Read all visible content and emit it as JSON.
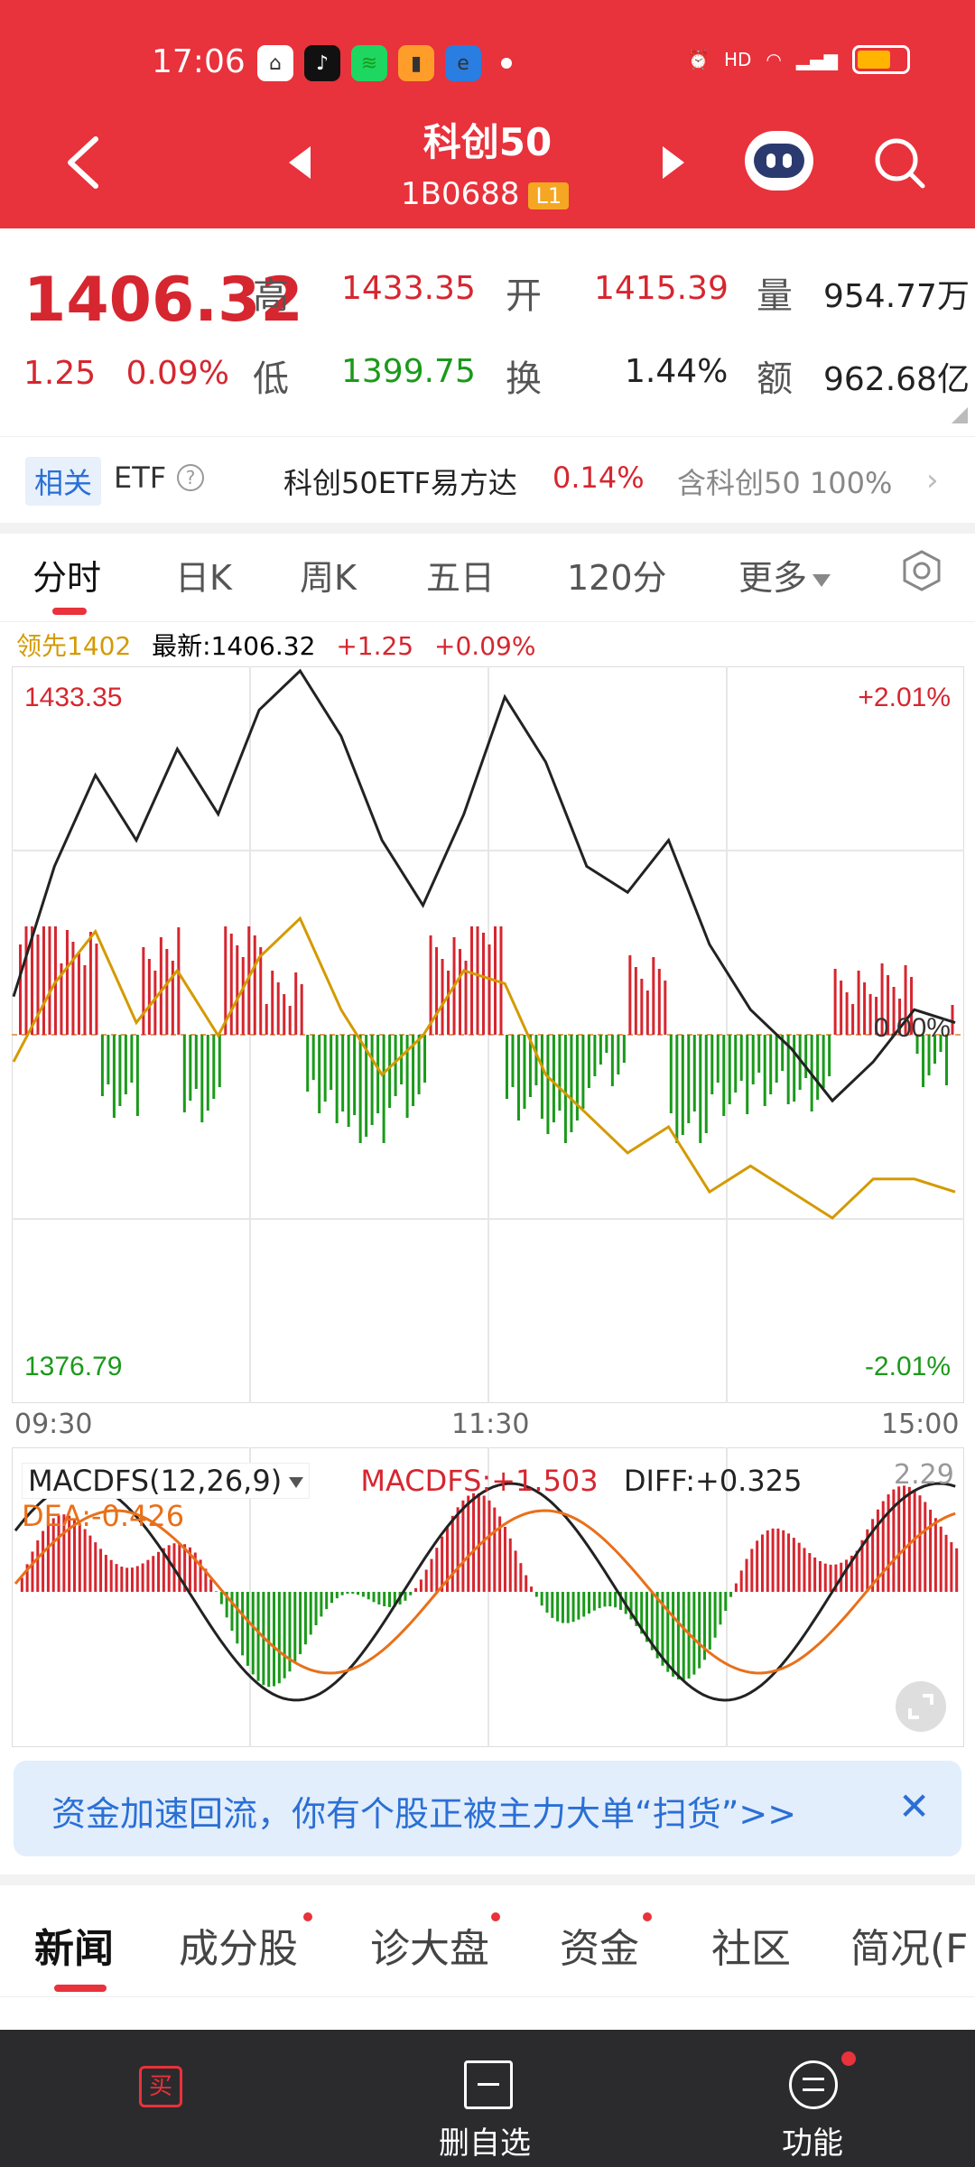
{
  "status_bar": {
    "time": "17:06"
  },
  "header": {
    "title": "科创50",
    "code": "1B0688",
    "level_badge": "L1"
  },
  "quote": {
    "price": "1406.32",
    "change": "1.25",
    "change_pct": "0.09%",
    "high_label": "高",
    "high": "1433.35",
    "low_label": "低",
    "low": "1399.75",
    "open_label": "开",
    "open": "1415.39",
    "turnover_label": "换",
    "turnover": "1.44%",
    "volume_label": "量",
    "volume": "954.77万",
    "amount_label": "额",
    "amount": "962.68亿"
  },
  "etf_bar": {
    "tag": "相关",
    "label": "ETF",
    "help": "?",
    "etf_name": "科创50ETF易方达",
    "etf_change": "0.14%",
    "contains": "含科创50 100%",
    "chevron": "›"
  },
  "chart_tabs": [
    "分时",
    "日K",
    "周K",
    "五日",
    "120分",
    "更多"
  ],
  "chart_info": {
    "lead": "领先1402",
    "latest": "最新:1406.32",
    "change": "+1.25",
    "change_pct": "+0.09%"
  },
  "chart_labels": {
    "max": "1433.35",
    "max_pct": "+2.01%",
    "min": "1376.79",
    "min_pct": "-2.01%",
    "mid_pct": "0.00%",
    "time_start": "09:30",
    "time_mid": "11:30",
    "time_end": "15:00"
  },
  "colors": {
    "accent": "#e8323c",
    "up": "#d6262f",
    "down": "#1a9a1a",
    "lead_line": "#d49a00",
    "dea_line": "#e8701a"
  },
  "macd": {
    "selector": "MACDFS(12,26,9)",
    "macdfs": "MACDFS:+1.503",
    "diff": "DIFF:+0.325",
    "dea": "DEA:-0.426",
    "max": "2.29"
  },
  "chart_data": {
    "type": "line",
    "y_range": [
      1376.79,
      1433.35
    ],
    "prev_close": 1405.07,
    "x_labels": [
      "09:30",
      "11:30",
      "15:00"
    ],
    "series": [],
    "approx_price_path": [
      1408,
      1418,
      1425,
      1420,
      1427,
      1422,
      1430,
      1433,
      1428,
      1420,
      1415,
      1422,
      1431,
      1426,
      1418,
      1416,
      1420,
      1412,
      1407,
      1404,
      1400,
      1403,
      1407,
      1406
    ],
    "approx_lead_path": [
      1403,
      1409,
      1413,
      1406,
      1410,
      1405,
      1411,
      1414,
      1407,
      1402,
      1405,
      1410,
      1409,
      1402,
      1399,
      1396,
      1398,
      1393,
      1395,
      1393,
      1391,
      1394,
      1394,
      1393
    ]
  },
  "banner": {
    "text": "资金加速回流，你有个股正被主力大单“扫货”>>",
    "close": "✕"
  },
  "news_tabs": [
    "新闻",
    "成分股",
    "诊大盘",
    "资金",
    "社区",
    "简况(F"
  ],
  "bottom_bar": {
    "buy_icon": "买",
    "watchlist": "删自选",
    "functions": "功能"
  }
}
